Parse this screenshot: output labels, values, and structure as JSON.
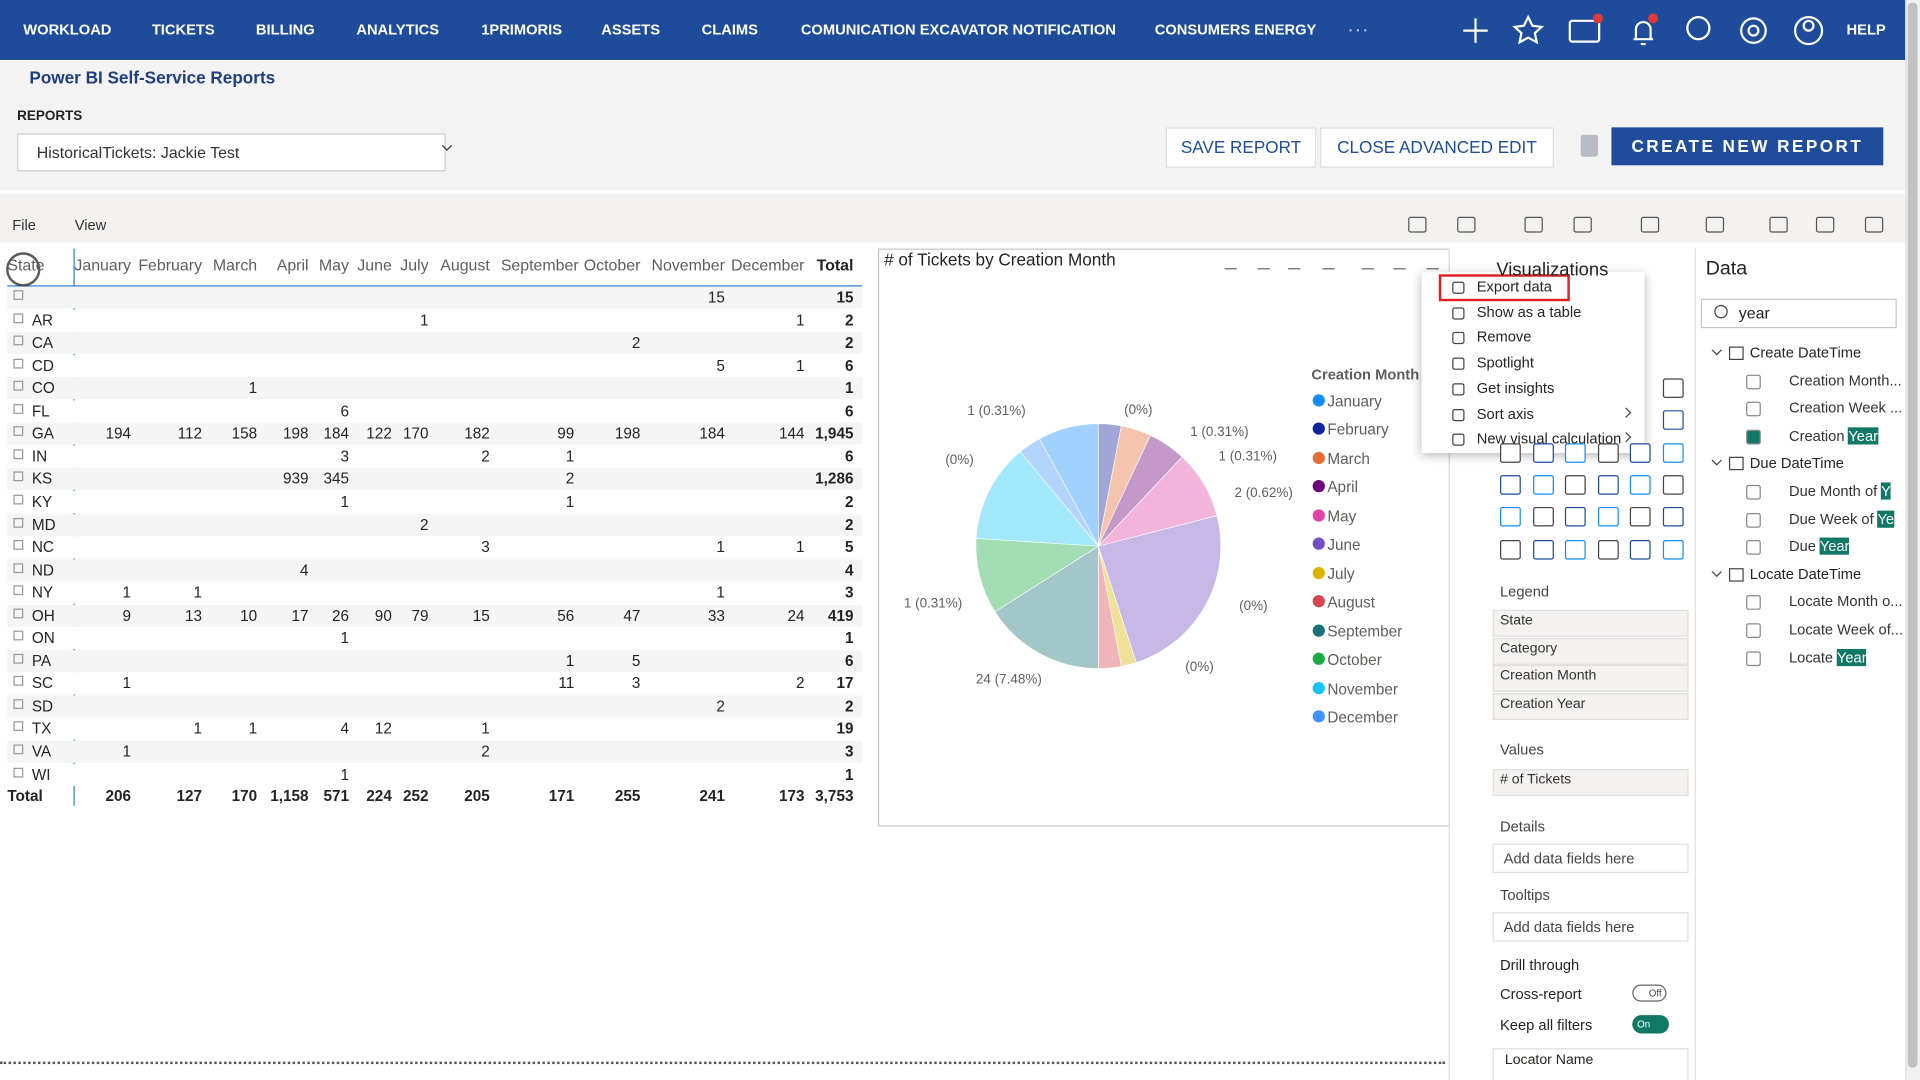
{
  "nav": {
    "items": [
      "WORKLOAD",
      "TICKETS",
      "BILLING",
      "ANALYTICS",
      "1PRIMORIS",
      "ASSETS",
      "CLAIMS",
      "COMUNICATION EXCAVATOR NOTIFICATION",
      "CONSUMERS ENERGY"
    ],
    "help": "HELP"
  },
  "header": {
    "title": "Power BI Self-Service Reports",
    "reports_label": "REPORTS",
    "selected_report": "HistoricalTickets: Jackie Test",
    "buttons": [
      "SAVE REPORT",
      "CLOSE ADVANCED EDIT"
    ],
    "primary_button": "CREATE NEW REPORT"
  },
  "toolbar": {
    "menus": [
      "File",
      "View"
    ]
  },
  "table": {
    "columns": [
      "State",
      "January",
      "February",
      "March",
      "April",
      "May",
      "June",
      "July",
      "August",
      "September",
      "October",
      "November",
      "December",
      "Total"
    ],
    "rows": [
      [
        null,
        null,
        null,
        null,
        null,
        null,
        null,
        null,
        null,
        null,
        null,
        "15",
        null,
        "15"
      ],
      [
        "AR",
        null,
        null,
        null,
        null,
        null,
        null,
        "1",
        null,
        null,
        null,
        null,
        "1",
        "2"
      ],
      [
        "CA",
        null,
        null,
        null,
        null,
        null,
        null,
        null,
        null,
        null,
        "2",
        null,
        null,
        "2"
      ],
      [
        "CD",
        null,
        null,
        null,
        null,
        null,
        null,
        null,
        null,
        null,
        null,
        "5",
        "1",
        "6"
      ],
      [
        "CO",
        null,
        null,
        "1",
        null,
        null,
        null,
        null,
        null,
        null,
        null,
        null,
        null,
        "1"
      ],
      [
        "FL",
        null,
        null,
        null,
        null,
        "6",
        null,
        null,
        null,
        null,
        null,
        null,
        null,
        "6"
      ],
      [
        "GA",
        "194",
        "112",
        "158",
        "198",
        "184",
        "122",
        "170",
        "182",
        "99",
        "198",
        "184",
        "144",
        "1,945"
      ],
      [
        "IN",
        null,
        null,
        null,
        null,
        "3",
        null,
        null,
        "2",
        "1",
        null,
        null,
        null,
        "6"
      ],
      [
        "KS",
        null,
        null,
        null,
        "939",
        "345",
        null,
        null,
        null,
        "2",
        null,
        null,
        null,
        "1,286"
      ],
      [
        "KY",
        null,
        null,
        null,
        null,
        "1",
        null,
        null,
        null,
        "1",
        null,
        null,
        null,
        "2"
      ],
      [
        "MD",
        null,
        null,
        null,
        null,
        null,
        null,
        "2",
        null,
        null,
        null,
        null,
        null,
        "2"
      ],
      [
        "NC",
        null,
        null,
        null,
        null,
        null,
        null,
        null,
        "3",
        null,
        null,
        "1",
        "1",
        "5"
      ],
      [
        "ND",
        null,
        null,
        null,
        "4",
        null,
        null,
        null,
        null,
        null,
        null,
        null,
        null,
        "4"
      ],
      [
        "NY",
        "1",
        "1",
        null,
        null,
        null,
        null,
        null,
        null,
        null,
        null,
        "1",
        null,
        "3"
      ],
      [
        "OH",
        "9",
        "13",
        "10",
        "17",
        "26",
        "90",
        "79",
        "15",
        "56",
        "47",
        "33",
        "24",
        "419"
      ],
      [
        "ON",
        null,
        null,
        null,
        null,
        "1",
        null,
        null,
        null,
        null,
        null,
        null,
        null,
        "1"
      ],
      [
        "PA",
        null,
        null,
        null,
        null,
        null,
        null,
        null,
        null,
        "1",
        "5",
        null,
        null,
        "6"
      ],
      [
        "SC",
        "1",
        null,
        null,
        null,
        null,
        null,
        null,
        null,
        "11",
        "3",
        null,
        "2",
        "17"
      ],
      [
        "SD",
        null,
        null,
        null,
        null,
        null,
        null,
        null,
        null,
        null,
        null,
        "2",
        null,
        "2"
      ],
      [
        "TX",
        null,
        "1",
        "1",
        null,
        "4",
        "12",
        null,
        "1",
        null,
        null,
        null,
        null,
        "19"
      ],
      [
        "VA",
        "1",
        null,
        null,
        null,
        null,
        null,
        null,
        "2",
        null,
        null,
        null,
        null,
        "3"
      ],
      [
        "WI",
        null,
        null,
        null,
        null,
        "1",
        null,
        null,
        null,
        null,
        null,
        null,
        null,
        "1"
      ]
    ],
    "total_row": [
      "Total",
      "206",
      "127",
      "170",
      "1,158",
      "571",
      "224",
      "252",
      "205",
      "171",
      "255",
      "241",
      "173",
      "3,753"
    ]
  },
  "chart_data": {
    "type": "pie",
    "title": "# of Tickets by Creation Month",
    "legend_title": "Creation Month",
    "categories": [
      "January",
      "February",
      "March",
      "April",
      "May",
      "June",
      "July",
      "August",
      "September",
      "October",
      "November",
      "December"
    ],
    "colors": [
      "#118dff",
      "#12239e",
      "#e66c37",
      "#6b007b",
      "#e044a7",
      "#744ec2",
      "#d9b300",
      "#d64550",
      "#197278",
      "#1aab40",
      "#15c6f4",
      "#4092ff"
    ],
    "values": [
      8,
      3,
      4,
      5,
      9,
      24,
      2,
      3,
      16,
      10,
      13,
      3
    ],
    "annotations": [
      "1 (0.31%)",
      "(0%)",
      "1 (0.31%)",
      "1 (0.31%)",
      "2 (0.62%)",
      "(0%)",
      "(0%)",
      "24 (7.48%)",
      "1 (0.31%)",
      "(0%)"
    ]
  },
  "context_menu": {
    "items": [
      "Export data",
      "Show as a table",
      "Remove",
      "Spotlight",
      "Get insights",
      "Sort axis",
      "New visual calculation"
    ],
    "highlighted": 0
  },
  "visualizations": {
    "title": "Visualizations",
    "legend": {
      "label": "Legend",
      "fields": [
        "State",
        "Category",
        "Creation Month",
        "Creation Year"
      ]
    },
    "values": {
      "label": "Values",
      "fields": [
        "# of Tickets"
      ]
    },
    "details": {
      "label": "Details",
      "placeholder": "Add data fields here"
    },
    "tooltips": {
      "label": "Tooltips",
      "placeholder": "Add data fields here"
    },
    "drill_through": {
      "label": "Drill through",
      "cross_report": "Cross-report",
      "cross_state": "Off",
      "keep_filters": "Keep all filters",
      "keep_state": "On",
      "field": "Locator Name"
    }
  },
  "data_pane": {
    "title": "Data",
    "search": "year",
    "groups": [
      {
        "name": "Create DateTime",
        "items": [
          {
            "text": "Creation Month..."
          },
          {
            "text": "Creation Week ..."
          },
          {
            "text": "Creation ",
            "match": "Year",
            "checked": true
          }
        ]
      },
      {
        "name": "Due DateTime",
        "items": [
          {
            "text": "Due Month of ",
            "match": "Y"
          },
          {
            "text": "Due Week of ",
            "match": "Ye"
          },
          {
            "text": "Due ",
            "match": "Year"
          }
        ]
      },
      {
        "name": "Locate DateTime",
        "items": [
          {
            "text": "Locate Month o..."
          },
          {
            "text": "Locate Week of..."
          },
          {
            "text": "Locate ",
            "match": "Year"
          }
        ]
      }
    ]
  }
}
